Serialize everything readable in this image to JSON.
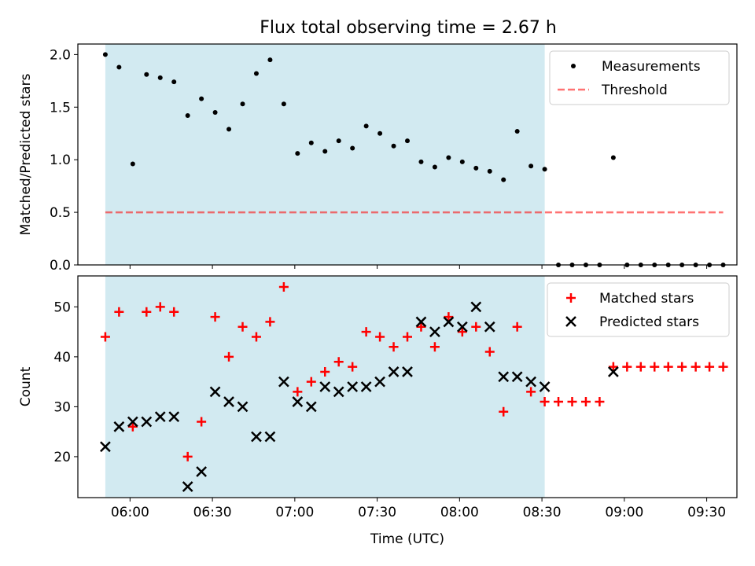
{
  "figure": {
    "title": "Flux total observing time = 2.67 h"
  },
  "colors": {
    "shade": "#add8e6",
    "threshold": "#ff0000",
    "measurement": "#000000",
    "matched": "#ff0000",
    "predicted": "#000000"
  },
  "chart_data": [
    {
      "type": "scatter",
      "panel": "top",
      "title": "Flux total observing time = 2.67 h",
      "xlabel": "",
      "ylabel": "Matched/Predicted stars",
      "ylim": [
        0,
        2.1
      ],
      "yticks": [
        0.0,
        0.5,
        1.0,
        1.5,
        2.0
      ],
      "yticklabels": [
        "0.0",
        "0.5",
        "1.0",
        "1.5",
        "2.0"
      ],
      "xlim": [
        "05:41",
        "09:41"
      ],
      "shaded_interval": [
        "05:51",
        "08:31"
      ],
      "legend_position": "top-right",
      "threshold": {
        "name": "Threshold",
        "value": 0.5,
        "x_range": [
          "05:51",
          "09:36"
        ],
        "style": "dashed"
      },
      "series": [
        {
          "name": "Measurements",
          "x": [
            "05:51",
            "05:56",
            "06:01",
            "06:06",
            "06:11",
            "06:16",
            "06:21",
            "06:26",
            "06:31",
            "06:36",
            "06:41",
            "06:46",
            "06:51",
            "06:56",
            "07:01",
            "07:06",
            "07:11",
            "07:16",
            "07:21",
            "07:26",
            "07:31",
            "07:36",
            "07:41",
            "07:46",
            "07:51",
            "07:56",
            "08:01",
            "08:06",
            "08:11",
            "08:16",
            "08:21",
            "08:26",
            "08:31",
            "08:36",
            "08:41",
            "08:46",
            "08:51",
            "08:56",
            "09:01",
            "09:06",
            "09:11",
            "09:16",
            "09:21",
            "09:26",
            "09:31",
            "09:36"
          ],
          "y": [
            2.0,
            1.88,
            0.96,
            1.81,
            1.78,
            1.74,
            1.42,
            1.58,
            1.45,
            1.29,
            1.53,
            1.82,
            1.95,
            1.53,
            1.06,
            1.16,
            1.08,
            1.18,
            1.11,
            1.32,
            1.25,
            1.13,
            1.18,
            0.98,
            0.93,
            1.02,
            0.98,
            0.92,
            0.89,
            0.81,
            1.27,
            0.94,
            0.91,
            0,
            0,
            0,
            0,
            1.02,
            0,
            0,
            0,
            0,
            0,
            0,
            0,
            0
          ]
        }
      ]
    },
    {
      "type": "scatter",
      "panel": "bottom",
      "xlabel": "Time (UTC)",
      "ylabel": "Count",
      "ylim": [
        11.8,
        56.2
      ],
      "yticks": [
        20,
        30,
        40,
        50
      ],
      "yticklabels": [
        "20",
        "30",
        "40",
        "50"
      ],
      "xlim": [
        "05:41",
        "09:41"
      ],
      "xticks": [
        "06:00",
        "06:30",
        "07:00",
        "07:30",
        "08:00",
        "08:30",
        "09:00",
        "09:30"
      ],
      "xticklabels": [
        "06:00",
        "06:30",
        "07:00",
        "07:30",
        "08:00",
        "08:30",
        "09:00",
        "09:30"
      ],
      "shaded_interval": [
        "05:51",
        "08:31"
      ],
      "legend_position": "top-right",
      "series": [
        {
          "name": "Matched stars",
          "marker": "+",
          "x": [
            "05:51",
            "05:56",
            "06:01",
            "06:06",
            "06:11",
            "06:16",
            "06:21",
            "06:26",
            "06:31",
            "06:36",
            "06:41",
            "06:46",
            "06:51",
            "06:56",
            "07:01",
            "07:06",
            "07:11",
            "07:16",
            "07:21",
            "07:26",
            "07:31",
            "07:36",
            "07:41",
            "07:46",
            "07:51",
            "07:56",
            "08:01",
            "08:06",
            "08:11",
            "08:16",
            "08:21",
            "08:26",
            "08:31",
            "08:36",
            "08:41",
            "08:46",
            "08:51",
            "08:56",
            "09:01",
            "09:06",
            "09:11",
            "09:16",
            "09:21",
            "09:26",
            "09:31",
            "09:36"
          ],
          "y": [
            44,
            49,
            26,
            49,
            50,
            49,
            20,
            27,
            48,
            40,
            46,
            44,
            47,
            54,
            33,
            35,
            37,
            39,
            38,
            45,
            44,
            42,
            44,
            46,
            42,
            48,
            45,
            46,
            41,
            29,
            46,
            33,
            31,
            31,
            31,
            31,
            31,
            38,
            38,
            38,
            38,
            38,
            38,
            38,
            38,
            38
          ]
        },
        {
          "name": "Predicted stars",
          "marker": "x",
          "x": [
            "05:51",
            "05:56",
            "06:01",
            "06:06",
            "06:11",
            "06:16",
            "06:21",
            "06:26",
            "06:31",
            "06:36",
            "06:41",
            "06:46",
            "06:51",
            "06:56",
            "07:01",
            "07:06",
            "07:11",
            "07:16",
            "07:21",
            "07:26",
            "07:31",
            "07:36",
            "07:41",
            "07:46",
            "07:51",
            "07:56",
            "08:01",
            "08:06",
            "08:11",
            "08:16",
            "08:21",
            "08:26",
            "08:31",
            "08:56"
          ],
          "y": [
            22,
            26,
            27,
            27,
            28,
            28,
            14,
            17,
            33,
            31,
            30,
            24,
            24,
            35,
            31,
            30,
            34,
            33,
            34,
            34,
            35,
            37,
            37,
            47,
            45,
            47,
            46,
            50,
            46,
            36,
            36,
            35,
            34,
            37
          ]
        }
      ]
    }
  ]
}
